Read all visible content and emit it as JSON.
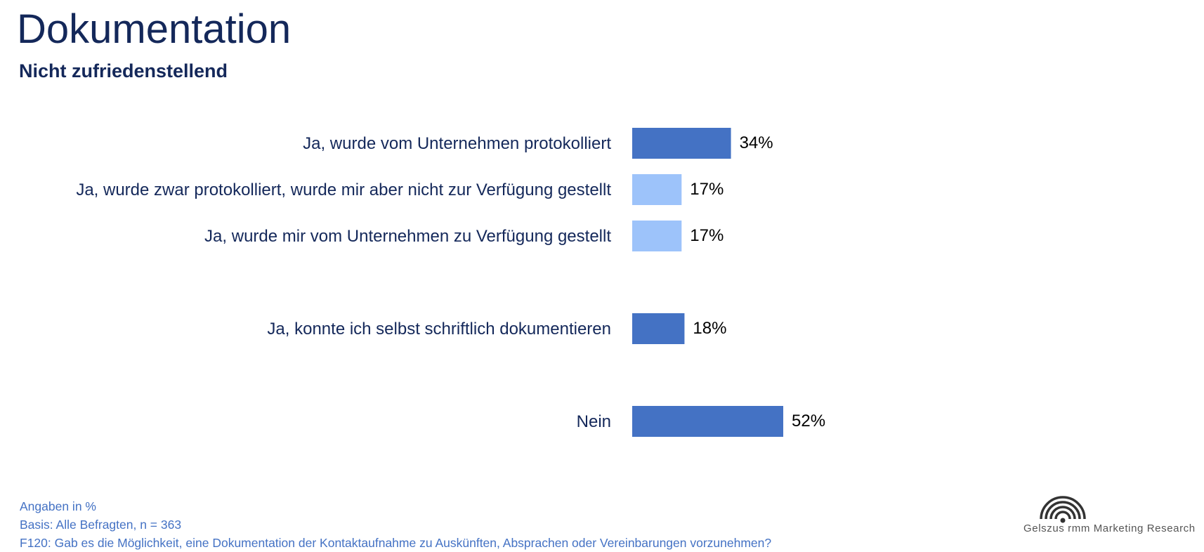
{
  "header": {
    "title": "Dokumentation",
    "subtitle": "Nicht zufriedenstellend"
  },
  "chart_data": {
    "type": "bar",
    "orientation": "horizontal",
    "categories": [
      "Ja, wurde vom Unternehmen protokolliert",
      "Ja, wurde zwar protokolliert, wurde mir aber nicht zur Verfügung gestellt",
      "Ja, wurde mir vom Unternehmen zu Verfügung gestellt",
      "Ja, konnte ich selbst schriftlich dokumentieren",
      "Nein"
    ],
    "values": [
      34,
      17,
      17,
      18,
      52
    ],
    "value_labels": [
      "34%",
      "17%",
      "17%",
      "18%",
      "52%"
    ],
    "colors": [
      "#4472c4",
      "#9dc3fa",
      "#9dc3fa",
      "#4472c4",
      "#4472c4"
    ],
    "unit": "%",
    "xlim": [
      0,
      100
    ],
    "grid": false,
    "legend": "none"
  },
  "footer": {
    "unit_note": "Angaben in %",
    "basis": "Basis: Alle Befragten, n = 363",
    "question": "F120: Gab es die Möglichkeit, eine Dokumentation der Kontaktaufnahme zu Auskünften, Absprachen oder Vereinbarungen vorzunehmen?"
  },
  "logo": {
    "text": "Gelszus rmm Marketing Research"
  },
  "colors": {
    "title": "#14285a",
    "accent": "#4472c4",
    "accent_light": "#9dc3fa"
  }
}
